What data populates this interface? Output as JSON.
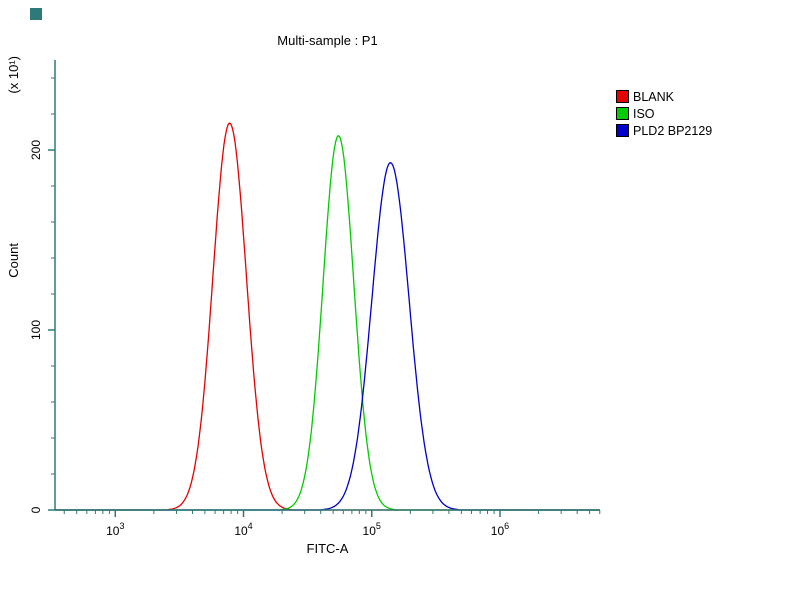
{
  "chart_data": {
    "type": "line",
    "title": "Multi-sample : P1",
    "xlabel": "FITC-A",
    "ylabel": "Count",
    "y_axis_multiplier": "(x 10¹)",
    "x_scale": "log10",
    "x_log_range": [
      2.53,
      6.78
    ],
    "xtick_base": "10",
    "xtick_exponents": [
      3,
      4,
      5,
      6
    ],
    "ylim": [
      0,
      250
    ],
    "yticks": [
      0,
      100,
      200
    ],
    "ytick_minor_step": 20,
    "axis_color": "#2e7a78",
    "text_color": "#000000",
    "background_color": "#ffffff",
    "legend_position": "right",
    "series": [
      {
        "name": "BLANK",
        "color": "#e60000",
        "peak_x": 7800,
        "peak_y": 215,
        "sigma_log10": 0.13
      },
      {
        "name": "ISO",
        "color": "#00cc00",
        "peak_x": 55000,
        "peak_y": 208,
        "sigma_log10": 0.12
      },
      {
        "name": "PLD2 BP2129",
        "color": "#0000cc",
        "peak_x": 140000,
        "peak_y": 193,
        "sigma_log10": 0.145
      }
    ]
  }
}
